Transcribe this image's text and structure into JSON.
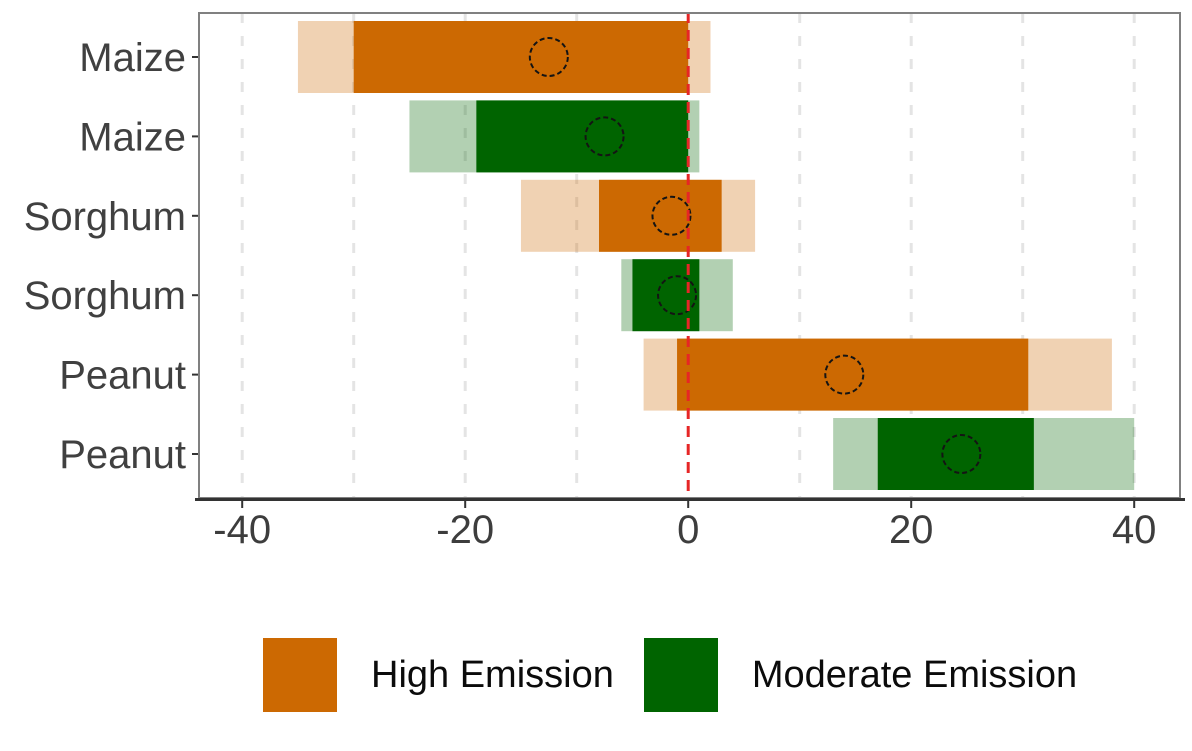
{
  "chart_data": {
    "type": "bar",
    "subtype": "horizontal-range-bars-with-median-markers",
    "title": "",
    "xlabel": "",
    "ylabel": "",
    "xlim": [
      -44,
      44.2
    ],
    "x_ticks": [
      -40,
      -20,
      0,
      20,
      40
    ],
    "x_gridlines": [
      -40,
      -30,
      -20,
      -10,
      10,
      20,
      30,
      40
    ],
    "zero_reference_line": 0,
    "grid": "dashed-vertical",
    "legend_position": "bottom",
    "categories": [
      "Maize",
      "Maize",
      "Sorghum",
      "Sorghum",
      "Peanut",
      "Peanut"
    ],
    "rows": [
      {
        "label": "Maize",
        "scenario": "High Emission",
        "outer_range": [
          -35,
          2
        ],
        "inner_range": [
          -30,
          0
        ],
        "median": -12.5
      },
      {
        "label": "Maize",
        "scenario": "Moderate Emission",
        "outer_range": [
          -25,
          1
        ],
        "inner_range": [
          -19,
          0
        ],
        "median": -7.5
      },
      {
        "label": "Sorghum",
        "scenario": "High Emission",
        "outer_range": [
          -15,
          6
        ],
        "inner_range": [
          -8,
          3
        ],
        "median": -1.5
      },
      {
        "label": "Sorghum",
        "scenario": "Moderate Emission",
        "outer_range": [
          -6,
          4
        ],
        "inner_range": [
          -5,
          1
        ],
        "median": -1
      },
      {
        "label": "Peanut",
        "scenario": "High Emission",
        "outer_range": [
          -4,
          38
        ],
        "inner_range": [
          -1,
          30.5
        ],
        "median": 14
      },
      {
        "label": "Peanut",
        "scenario": "Moderate Emission",
        "outer_range": [
          13,
          40
        ],
        "inner_range": [
          17,
          31
        ],
        "median": 24.5
      }
    ],
    "legend": [
      {
        "label": "High Emission",
        "color": "#CC6902",
        "light_color": "#F0D2B3"
      },
      {
        "label": "Moderate Emission",
        "color": "#006400",
        "light_color": "#B3D1B3"
      }
    ],
    "colors": {
      "high_emission": "#CC6902",
      "high_emission_light": "#F0D2B3",
      "moderate_emission": "#006400",
      "moderate_emission_light": "#B3D1B3",
      "zero_line": "#E62626",
      "gridline": "#E4E4E4",
      "panel_border": "#808080",
      "axis_line": "#333333",
      "axis_text": "#3D3D3D",
      "median_circle_stroke": "#141414"
    }
  }
}
